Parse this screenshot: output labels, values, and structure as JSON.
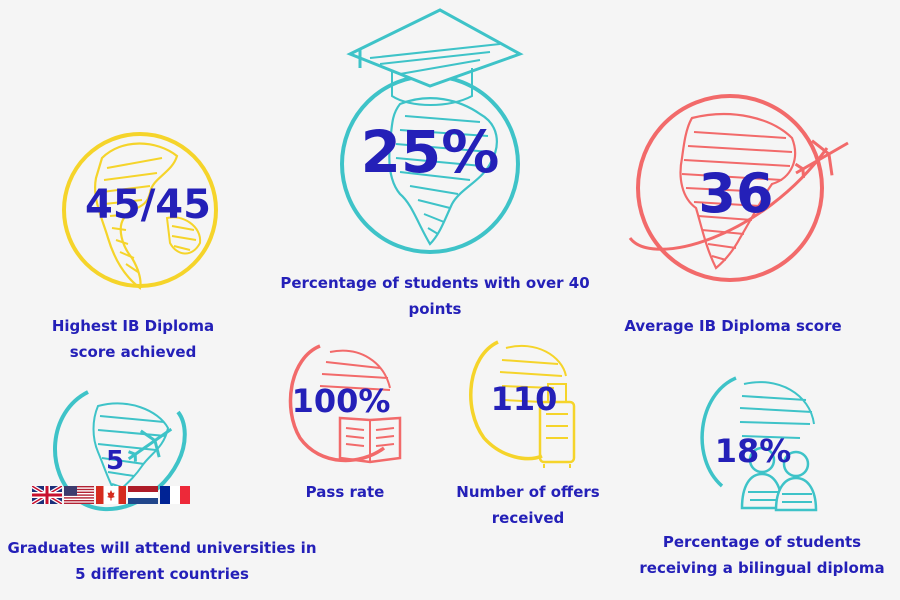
{
  "colors": {
    "text": "#2420b8",
    "yellow": "#f5d42a",
    "teal": "#3ec3c8",
    "coral": "#f26a6a",
    "background": "#f5f5f5"
  },
  "stats": {
    "highest_score": {
      "value": "45/45",
      "caption": "Highest IB Diploma score achieved",
      "icon": "yellow-globe-icon"
    },
    "over_40": {
      "value": "25%",
      "caption": "Percentage of students with over 40 points",
      "icon": "teal-globe-graduation-cap-icon"
    },
    "average_score": {
      "value": "36",
      "caption": "Average IB Diploma score",
      "icon": "coral-globe-airplane-icon"
    },
    "countries": {
      "value": "5",
      "caption": "Graduates will attend universities in 5 different countries",
      "icon": "teal-globe-airplane-icon",
      "flags": [
        "UK",
        "USA",
        "Canada",
        "Netherlands",
        "France"
      ]
    },
    "pass_rate": {
      "value": "100%",
      "caption": "Pass rate",
      "icon": "coral-globe-book-icon"
    },
    "offers": {
      "value": "110",
      "caption": "Number of offers received",
      "icon": "yellow-globe-suitcase-icon"
    },
    "bilingual": {
      "value": "18%",
      "caption": "Percentage of students receiving a bilingual diploma",
      "icon": "teal-globe-people-icon"
    }
  }
}
